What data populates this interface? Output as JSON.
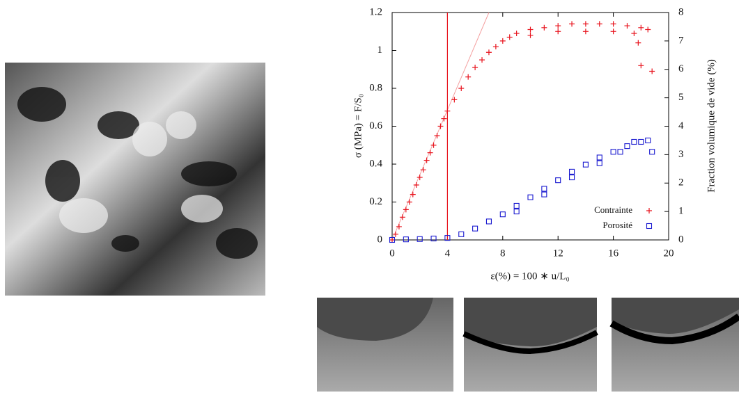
{
  "chart_data": {
    "type": "scatter",
    "xlabel": "ε(%) = 100 ∗ u/L₀",
    "ylabel": "σ (MPa) = F/S₀",
    "y2label": "Fraction volumique de vide (%)",
    "xlim": [
      0,
      20
    ],
    "xticks": [
      0,
      4,
      8,
      12,
      16,
      20
    ],
    "ylim": [
      0,
      1.2
    ],
    "yticks": [
      0,
      0.2,
      0.4,
      0.6,
      0.8,
      1,
      1.2
    ],
    "y2lim": [
      0,
      8
    ],
    "y2ticks": [
      0,
      1,
      2,
      3,
      4,
      5,
      6,
      7,
      8
    ],
    "legend": "bottom-right",
    "vline": 4,
    "tangent_line": {
      "x": [
        0,
        7
      ],
      "values": [
        0,
        1.2
      ],
      "color": "#f4a0a0"
    },
    "series": [
      {
        "name": "Contrainte",
        "color": "#e8141e",
        "marker": "plus",
        "x": [
          0,
          0.25,
          0.5,
          0.75,
          1,
          1.25,
          1.5,
          1.75,
          2,
          2.25,
          2.5,
          2.75,
          3,
          3.25,
          3.5,
          3.75,
          4,
          4.5,
          5,
          5.5,
          6,
          6.5,
          7,
          7.5,
          8,
          8.5,
          9,
          10,
          11,
          12,
          13,
          14,
          15,
          16,
          17,
          18,
          18.5,
          17.5,
          16,
          14,
          12,
          10,
          17.8,
          18,
          18.8
        ],
        "values": [
          0,
          0.03,
          0.07,
          0.12,
          0.16,
          0.2,
          0.24,
          0.29,
          0.33,
          0.37,
          0.42,
          0.46,
          0.5,
          0.55,
          0.6,
          0.64,
          0.68,
          0.74,
          0.8,
          0.86,
          0.91,
          0.95,
          0.99,
          1.02,
          1.05,
          1.07,
          1.09,
          1.11,
          1.12,
          1.13,
          1.14,
          1.14,
          1.14,
          1.14,
          1.13,
          1.12,
          1.11,
          1.09,
          1.1,
          1.1,
          1.1,
          1.08,
          1.04,
          0.92,
          0.89
        ]
      },
      {
        "name": "Porosité",
        "color": "#1a1ad0",
        "marker": "square",
        "axis": "y2",
        "x": [
          0,
          1,
          2,
          3,
          4,
          5,
          6,
          7,
          8,
          9,
          10,
          11,
          12,
          13,
          14,
          15,
          16,
          17,
          18,
          18.5,
          17.5,
          16.5,
          15,
          13,
          11,
          9,
          18.8
        ],
        "values": [
          0,
          0.02,
          0.03,
          0.05,
          0.07,
          0.2,
          0.4,
          0.65,
          0.9,
          1.2,
          1.5,
          1.8,
          2.1,
          2.4,
          2.65,
          2.9,
          3.1,
          3.3,
          3.45,
          3.5,
          3.45,
          3.1,
          2.7,
          2.2,
          1.6,
          1.0,
          3.1
        ]
      }
    ]
  }
}
